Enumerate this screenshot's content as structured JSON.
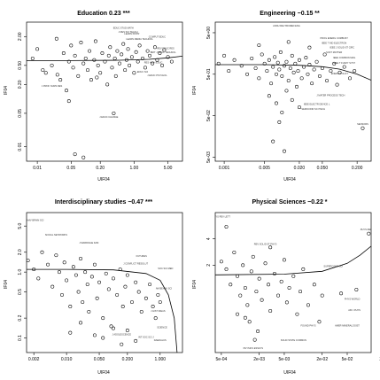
{
  "chart_data": [
    {
      "type": "scatter",
      "title": "Education 0.23 ***",
      "xlabel": "UIF04",
      "ylabel": "IF04",
      "xscale": "log",
      "yscale": "log",
      "xlim": [
        0.006,
        10
      ],
      "ylim": [
        0.005,
        4
      ],
      "xticks": [
        "0.01",
        "0.05",
        "0.20",
        "1.00",
        "5.00"
      ],
      "yticks": [
        "0.01",
        "0.05",
        "0.20",
        "0.50",
        "2.00"
      ],
      "trend": [
        [
          0.006,
          0.63
        ],
        [
          0.05,
          0.63
        ],
        [
          0.5,
          0.64
        ],
        [
          2,
          0.67
        ],
        [
          5,
          0.72
        ],
        [
          10,
          0.78
        ]
      ],
      "labels": [
        {
          "text": "EDUC STUD MATH",
          "x": 0.6,
          "y": 2.9
        },
        {
          "text": "J RES SCI TEACH",
          "x": 0.75,
          "y": 2.4
        },
        {
          "text": "LEARN INSTR",
          "x": 0.9,
          "y": 2.2
        },
        {
          "text": "LEARN MEDIA TECHNOL",
          "x": 1.3,
          "y": 1.7
        },
        {
          "text": "COMPUT EDUC",
          "x": 3.0,
          "y": 1.9
        },
        {
          "text": "REV EDUC RES",
          "x": 4.5,
          "y": 1.1
        },
        {
          "text": "BRIT J EDUC TECHNOL",
          "x": 4.0,
          "y": 0.9
        },
        {
          "text": "RES HIGH EDUC",
          "x": 2.5,
          "y": 0.55
        },
        {
          "text": "EDUC SCI",
          "x": 1.5,
          "y": 0.35
        },
        {
          "text": "J EDUC PSYCHOL",
          "x": 3.0,
          "y": 0.3
        },
        {
          "text": "J PROF NURS RES",
          "x": 0.02,
          "y": 0.18
        },
        {
          "text": "J EDUC CHANGE",
          "x": 0.3,
          "y": 0.04
        }
      ],
      "points": [
        [
          0.008,
          0.7
        ],
        [
          0.01,
          1.1
        ],
        [
          0.015,
          0.35
        ],
        [
          0.02,
          0.5
        ],
        [
          0.025,
          1.8
        ],
        [
          0.03,
          0.25
        ],
        [
          0.035,
          0.9
        ],
        [
          0.04,
          0.15
        ],
        [
          0.045,
          0.6
        ],
        [
          0.05,
          1.3
        ],
        [
          0.055,
          0.45
        ],
        [
          0.06,
          0.8
        ],
        [
          0.07,
          0.3
        ],
        [
          0.08,
          1.5
        ],
        [
          0.09,
          0.55
        ],
        [
          0.1,
          0.7
        ],
        [
          0.11,
          0.4
        ],
        [
          0.12,
          1.0
        ],
        [
          0.13,
          0.25
        ],
        [
          0.15,
          0.65
        ],
        [
          0.16,
          1.6
        ],
        [
          0.18,
          0.5
        ],
        [
          0.2,
          0.35
        ],
        [
          0.22,
          0.9
        ],
        [
          0.25,
          0.6
        ],
        [
          0.28,
          0.2
        ],
        [
          0.3,
          0.8
        ],
        [
          0.32,
          1.2
        ],
        [
          0.35,
          0.45
        ],
        [
          0.4,
          0.7
        ],
        [
          0.42,
          0.3
        ],
        [
          0.45,
          1.0
        ],
        [
          0.5,
          0.55
        ],
        [
          0.55,
          0.85
        ],
        [
          0.6,
          1.4
        ],
        [
          0.65,
          0.4
        ],
        [
          0.7,
          0.65
        ],
        [
          0.75,
          1.1
        ],
        [
          0.8,
          0.5
        ],
        [
          0.9,
          0.75
        ],
        [
          1.0,
          0.35
        ],
        [
          1.1,
          0.95
        ],
        [
          1.2,
          0.6
        ],
        [
          1.3,
          1.3
        ],
        [
          1.5,
          0.7
        ],
        [
          1.7,
          0.45
        ],
        [
          1.9,
          1.0
        ],
        [
          2.1,
          0.8
        ],
        [
          2.4,
          0.55
        ],
        [
          2.7,
          1.2
        ],
        [
          3.0,
          0.65
        ],
        [
          3.4,
          0.9
        ],
        [
          3.8,
          0.5
        ],
        [
          4.2,
          1.05
        ],
        [
          5.0,
          0.75
        ],
        [
          6.0,
          0.6
        ],
        [
          0.045,
          0.09
        ],
        [
          0.09,
          0.006
        ],
        [
          0.06,
          0.007
        ],
        [
          0.38,
          0.05
        ],
        [
          0.17,
          0.28
        ],
        [
          0.026,
          0.32
        ],
        [
          0.013,
          0.4
        ]
      ]
    },
    {
      "type": "scatter",
      "title": "Engineering −0.15 **",
      "xlabel": "UIF04",
      "ylabel": "IF04",
      "xscale": "log",
      "yscale": "log",
      "xlim": [
        0.0007,
        0.35
      ],
      "ylim": [
        0.004,
        9
      ],
      "xticks": [
        "0.001",
        "0.005",
        "0.020",
        "0.050",
        "0.200"
      ],
      "yticks": [
        "5e-03",
        "5e-02",
        "5e-01",
        "5e+00"
      ],
      "trend": [
        [
          0.0007,
          0.85
        ],
        [
          0.005,
          0.85
        ],
        [
          0.02,
          0.82
        ],
        [
          0.05,
          0.76
        ],
        [
          0.1,
          0.66
        ],
        [
          0.2,
          0.5
        ],
        [
          0.35,
          0.36
        ]
      ],
      "labels": [
        {
          "text": "ANNU REV BIOMED ENG",
          "x": 0.012,
          "y": 7.0
        },
        {
          "text": "PROG ENERG COMBUST",
          "x": 0.08,
          "y": 3.5
        },
        {
          "text": "IEEE T IND ELECTRON",
          "x": 0.08,
          "y": 2.7
        },
        {
          "text": "IEEE J SOLID-ST CIRC",
          "x": 0.11,
          "y": 2.1
        },
        {
          "text": "SOFT MATTER",
          "x": 0.08,
          "y": 1.6
        },
        {
          "text": "IEEE COMMUN MAG",
          "x": 0.12,
          "y": 1.2
        },
        {
          "text": "IEEE T FUZZY SYST",
          "x": 0.12,
          "y": 0.9
        },
        {
          "text": "ENERG POLICY",
          "x": 0.1,
          "y": 0.5
        },
        {
          "text": "J MATER PROCESS TECH",
          "x": 0.07,
          "y": 0.15
        },
        {
          "text": "IEEE ELECTR DEVICE L",
          "x": 0.04,
          "y": 0.09
        },
        {
          "text": "SEMICOND SCI TECH",
          "x": 0.035,
          "y": 0.07
        },
        {
          "text": "SENSORS",
          "x": 0.25,
          "y": 0.03
        }
      ],
      "points": [
        [
          0.0008,
          0.9
        ],
        [
          0.001,
          1.4
        ],
        [
          0.0012,
          0.6
        ],
        [
          0.0015,
          1.1
        ],
        [
          0.002,
          0.8
        ],
        [
          0.0025,
          0.5
        ],
        [
          0.003,
          1.2
        ],
        [
          0.0035,
          0.7
        ],
        [
          0.004,
          0.4
        ],
        [
          0.0045,
          1.5
        ],
        [
          0.005,
          0.9
        ],
        [
          0.0055,
          0.6
        ],
        [
          0.006,
          1.1
        ],
        [
          0.0065,
          0.3
        ],
        [
          0.007,
          0.75
        ],
        [
          0.0075,
          1.3
        ],
        [
          0.008,
          0.5
        ],
        [
          0.0085,
          0.95
        ],
        [
          0.009,
          0.65
        ],
        [
          0.0095,
          1.7
        ],
        [
          0.01,
          0.45
        ],
        [
          0.011,
          0.8
        ],
        [
          0.012,
          1.0
        ],
        [
          0.013,
          0.35
        ],
        [
          0.014,
          0.7
        ],
        [
          0.015,
          1.4
        ],
        [
          0.016,
          0.55
        ],
        [
          0.017,
          0.9
        ],
        [
          0.018,
          0.25
        ],
        [
          0.019,
          0.6
        ],
        [
          0.02,
          1.1
        ],
        [
          0.022,
          0.4
        ],
        [
          0.024,
          0.75
        ],
        [
          0.026,
          1.25
        ],
        [
          0.028,
          0.5
        ],
        [
          0.03,
          0.85
        ],
        [
          0.033,
          0.3
        ],
        [
          0.036,
          0.65
        ],
        [
          0.04,
          1.0
        ],
        [
          0.045,
          0.45
        ],
        [
          0.05,
          0.7
        ],
        [
          0.055,
          1.5
        ],
        [
          0.06,
          0.35
        ],
        [
          0.07,
          0.6
        ],
        [
          0.08,
          0.9
        ],
        [
          0.09,
          0.28
        ],
        [
          0.1,
          0.55
        ],
        [
          0.12,
          0.75
        ],
        [
          0.15,
          0.4
        ],
        [
          0.18,
          0.6
        ],
        [
          0.006,
          0.15
        ],
        [
          0.008,
          0.1
        ],
        [
          0.01,
          0.06
        ],
        [
          0.012,
          0.2
        ],
        [
          0.015,
          0.12
        ],
        [
          0.02,
          0.08
        ],
        [
          0.009,
          0.035
        ],
        [
          0.007,
          0.012
        ],
        [
          0.011,
          0.007
        ],
        [
          0.25,
          0.025
        ],
        [
          0.013,
          3.0
        ],
        [
          0.004,
          2.5
        ],
        [
          0.03,
          2.2
        ]
      ]
    },
    {
      "type": "scatter",
      "title": "Interdisciplinary studies −0.47 ***",
      "xlabel": "UIF04",
      "ylabel": "IF04",
      "xscale": "log",
      "yscale": "log",
      "xlim": [
        0.0014,
        3
      ],
      "ylim": [
        0.06,
        8
      ],
      "xticks": [
        "0.002",
        "0.010",
        "0.050",
        "0.200",
        "1.000"
      ],
      "yticks": [
        "0.1",
        "0.2",
        "0.5",
        "1.0",
        "2.0",
        "5.0"
      ],
      "trend": [
        [
          0.0014,
          1.1
        ],
        [
          0.01,
          1.1
        ],
        [
          0.1,
          1.08
        ],
        [
          0.5,
          0.95
        ],
        [
          1.0,
          0.75
        ],
        [
          1.5,
          0.45
        ],
        [
          2.0,
          0.2
        ],
        [
          2.3,
          0.06
        ]
      ],
      "labels": [
        {
          "text": "BEHAV BRAIN SCI",
          "x": 0.002,
          "y": 6.0
        },
        {
          "text": "SOCIAL NETWORKS",
          "x": 0.006,
          "y": 3.6
        },
        {
          "text": "J MARRIAGE FAM",
          "x": 0.03,
          "y": 2.7
        },
        {
          "text": "FUTURES",
          "x": 0.4,
          "y": 1.7
        },
        {
          "text": "J CONFLICT RESOLUT",
          "x": 0.3,
          "y": 1.3
        },
        {
          "text": "AM BEHAV SCI",
          "x": 1.2,
          "y": 0.55
        },
        {
          "text": "J HIST IDEAS",
          "x": 0.9,
          "y": 0.25
        },
        {
          "text": "J ADOLESCENCE",
          "x": 0.15,
          "y": 0.11
        },
        {
          "text": "INT SOC SCI J",
          "x": 0.5,
          "y": 0.1
        },
        {
          "text": "DAEDALUS",
          "x": 1.0,
          "y": 0.09
        },
        {
          "text": "SCIENCE",
          "x": 1.1,
          "y": 0.14
        },
        {
          "text": "SOC SCI MED",
          "x": 1.3,
          "y": 1.1
        }
      ],
      "points": [
        [
          0.0015,
          1.5
        ],
        [
          0.002,
          1.1
        ],
        [
          0.0025,
          0.8
        ],
        [
          0.003,
          2.0
        ],
        [
          0.004,
          1.3
        ],
        [
          0.005,
          0.6
        ],
        [
          0.006,
          1.8
        ],
        [
          0.007,
          1.0
        ],
        [
          0.008,
          0.45
        ],
        [
          0.009,
          1.4
        ],
        [
          0.01,
          0.75
        ],
        [
          0.012,
          0.3
        ],
        [
          0.014,
          1.2
        ],
        [
          0.016,
          0.9
        ],
        [
          0.018,
          0.5
        ],
        [
          0.02,
          1.6
        ],
        [
          0.022,
          0.35
        ],
        [
          0.025,
          1.0
        ],
        [
          0.028,
          0.65
        ],
        [
          0.03,
          0.25
        ],
        [
          0.035,
          0.85
        ],
        [
          0.04,
          1.3
        ],
        [
          0.045,
          0.4
        ],
        [
          0.05,
          0.7
        ],
        [
          0.06,
          0.2
        ],
        [
          0.07,
          0.95
        ],
        [
          0.08,
          0.55
        ],
        [
          0.09,
          0.15
        ],
        [
          0.1,
          0.8
        ],
        [
          0.12,
          0.45
        ],
        [
          0.14,
          1.1
        ],
        [
          0.16,
          0.3
        ],
        [
          0.18,
          0.6
        ],
        [
          0.2,
          0.9
        ],
        [
          0.25,
          0.35
        ],
        [
          0.3,
          0.7
        ],
        [
          0.35,
          0.5
        ],
        [
          0.4,
          0.25
        ],
        [
          0.5,
          0.4
        ],
        [
          0.6,
          0.65
        ],
        [
          0.7,
          0.3
        ],
        [
          0.8,
          0.2
        ],
        [
          0.9,
          0.45
        ],
        [
          1.0,
          0.35
        ],
        [
          0.02,
          0.17
        ],
        [
          0.012,
          0.12
        ],
        [
          0.04,
          0.11
        ],
        [
          0.06,
          0.1
        ],
        [
          0.1,
          0.14
        ],
        [
          0.15,
          0.08
        ],
        [
          0.2,
          0.13
        ],
        [
          0.3,
          0.09
        ]
      ]
    },
    {
      "type": "scatter",
      "title": "Physical Sciences −0.22 *",
      "xlabel": "UIF04",
      "ylabel": "IF04",
      "xscale": "log",
      "yscale": "log",
      "xlim": [
        0.0004,
        0.12
      ],
      "ylim": [
        0.2,
        8
      ],
      "xticks": [
        "5e-04",
        "2e-03",
        "5e-03",
        "2e-02",
        "5e-02",
        "2e-01"
      ],
      "yticks": [
        "2",
        "4"
      ],
      "trend": [
        [
          0.0004,
          1.55
        ],
        [
          0.005,
          1.58
        ],
        [
          0.02,
          1.7
        ],
        [
          0.05,
          2.1
        ],
        [
          0.08,
          2.6
        ],
        [
          0.12,
          3.3
        ]
      ],
      "labels": [
        {
          "text": "PHYS REV LETT",
          "x": 0.0005,
          "y": 7.0
        },
        {
          "text": "PHYS REP",
          "x": 0.1,
          "y": 5.0
        },
        {
          "text": "REV SOLID ST PHYS",
          "x": 0.0025,
          "y": 3.4
        },
        {
          "text": "SUPERCOND SCI",
          "x": 0.03,
          "y": 1.9
        },
        {
          "text": "PHYS WORLD",
          "x": 0.06,
          "y": 0.8
        },
        {
          "text": "AM J PHYS",
          "x": 0.065,
          "y": 0.6
        },
        {
          "text": "AMER MINERALOGIST",
          "x": 0.05,
          "y": 0.4
        },
        {
          "text": "FOUND PHYS",
          "x": 0.012,
          "y": 0.4
        },
        {
          "text": "SOLID STATE COMMUN",
          "x": 0.007,
          "y": 0.27
        },
        {
          "text": "PHYSICS ESSAYS",
          "x": 0.0016,
          "y": 0.22
        }
      ],
      "points": [
        [
          0.0005,
          2.2
        ],
        [
          0.0006,
          1.8
        ],
        [
          0.0007,
          1.2
        ],
        [
          0.0008,
          2.8
        ],
        [
          0.0009,
          1.5
        ],
        [
          0.001,
          0.9
        ],
        [
          0.0011,
          2.0
        ],
        [
          0.0012,
          1.1
        ],
        [
          0.0013,
          0.7
        ],
        [
          0.0015,
          1.7
        ],
        [
          0.0016,
          2.5
        ],
        [
          0.0018,
          1.0
        ],
        [
          0.002,
          1.4
        ],
        [
          0.0022,
          0.8
        ],
        [
          0.0025,
          2.1
        ],
        [
          0.0028,
          1.2
        ],
        [
          0.003,
          0.6
        ],
        [
          0.0035,
          1.6
        ],
        [
          0.004,
          0.9
        ],
        [
          0.0045,
          1.3
        ],
        [
          0.005,
          2.3
        ],
        [
          0.0055,
          0.75
        ],
        [
          0.006,
          1.1
        ],
        [
          0.007,
          1.5
        ],
        [
          0.008,
          0.55
        ],
        [
          0.009,
          1.0
        ],
        [
          0.01,
          1.8
        ],
        [
          0.012,
          0.7
        ],
        [
          0.015,
          1.2
        ],
        [
          0.018,
          0.45
        ],
        [
          0.02,
          0.9
        ],
        [
          0.0012,
          0.5
        ],
        [
          0.0014,
          0.45
        ],
        [
          0.0019,
          0.35
        ],
        [
          0.0017,
          0.28
        ],
        [
          0.0009,
          0.55
        ],
        [
          0.003,
          3.2
        ],
        [
          0.0006,
          5.5
        ],
        [
          0.04,
          0.95
        ],
        [
          0.11,
          4.6
        ],
        [
          0.07,
          1.05
        ]
      ]
    }
  ]
}
